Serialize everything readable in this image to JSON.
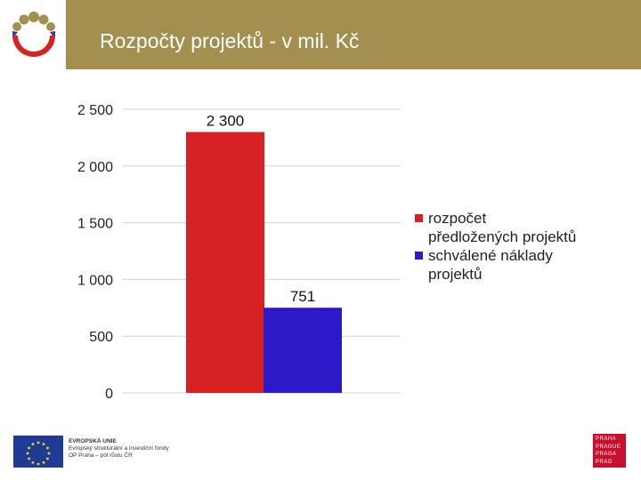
{
  "header": {
    "title": "Rozpočty projektů - v mil. Kč"
  },
  "colors": {
    "title_bar": "#a38f4f",
    "series_1": "#d62222",
    "series_2": "#2c1ac8",
    "gridline": "#d0d0d0"
  },
  "chart_data": {
    "type": "bar",
    "title": "",
    "xlabel": "",
    "ylabel": "",
    "ylim": [
      0,
      2500
    ],
    "yticks": [
      0,
      500,
      1000,
      1500,
      2000,
      2500
    ],
    "ytick_labels": [
      "0",
      "500",
      "1 000",
      "1 500",
      "2 000",
      "2 500"
    ],
    "grid": true,
    "legend_position": "right",
    "series": [
      {
        "name": "rozpočet předložených projektů",
        "legend_lines": [
          "rozpočet",
          "předložených projektů"
        ],
        "values": [
          2300
        ],
        "data_label": "2 300",
        "color": "#d62222"
      },
      {
        "name": "schválené náklady projektů",
        "legend_lines": [
          "schválené náklady",
          "projektů"
        ],
        "values": [
          751
        ],
        "data_label": "751",
        "color": "#2c1ac8"
      }
    ]
  },
  "footer": {
    "eu_lines": [
      "EVROPSKÁ UNIE",
      "Evropský strukturální a investiční fondy",
      "OP Praha – pól růstu ČR"
    ],
    "praha_lines": [
      "PRAHA",
      "PRAGUE",
      "PRAGA",
      "PRAG"
    ]
  }
}
